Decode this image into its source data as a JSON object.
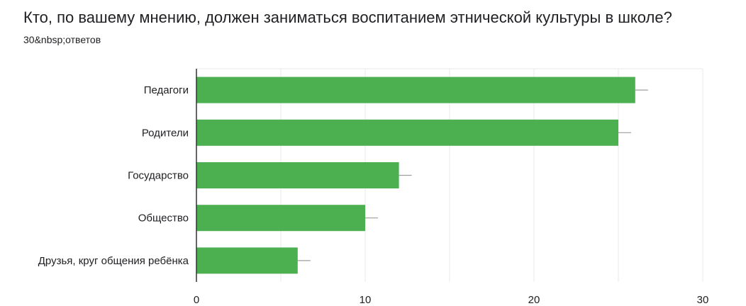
{
  "header": {
    "question": "Кто, по вашему мнению, должен заниматься воспитанием этнической культуры в школе?",
    "responses": "30&nbsp;ответов"
  },
  "colors": {
    "bar": "#4caf50",
    "grid": "#e8e8e8",
    "axis": "#333333",
    "error_bar": "#9e9e9e"
  },
  "chart_data": {
    "type": "bar",
    "orientation": "horizontal",
    "categories": [
      "Педагоги",
      "Родители",
      "Государство",
      "Общество",
      "Друзья, круг общения ребёнка"
    ],
    "values": [
      26,
      25,
      12,
      10,
      6
    ],
    "xlim": [
      0,
      30
    ],
    "xticks": [
      0,
      10,
      20,
      30
    ],
    "grid": true,
    "error_bars": true,
    "legend": "none"
  }
}
